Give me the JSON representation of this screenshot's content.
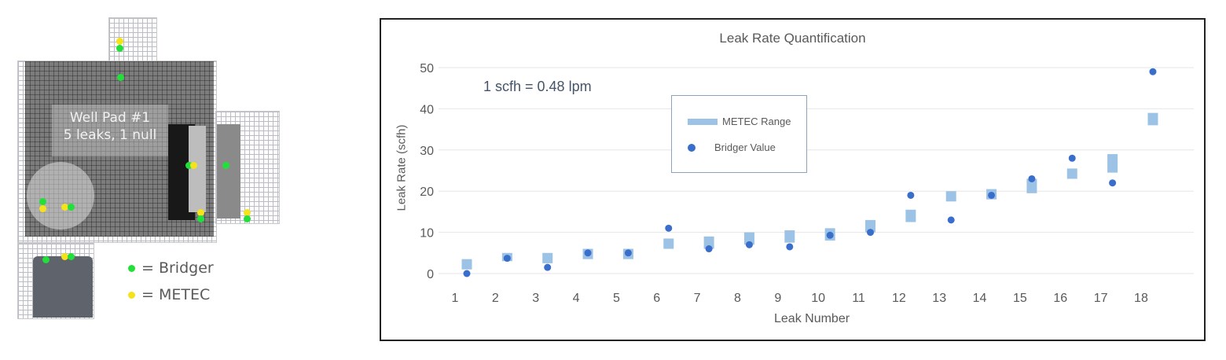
{
  "site_map": {
    "pad_label_line1": "Well Pad #1",
    "pad_label_line2": "5 leaks, 1 null",
    "legend": [
      {
        "label": "= Bridger",
        "color": "#22e03a"
      },
      {
        "label": "= METEC",
        "color": "#f4e21a"
      }
    ]
  },
  "chart_data": {
    "type": "scatter",
    "title": "Leak Rate Quantification",
    "annotation": "1 scfh = 0.48 lpm",
    "xlabel": "Leak Number",
    "ylabel": "Leak Rate (scfh)",
    "ylim": [
      0,
      50
    ],
    "yticks": [
      0,
      10,
      20,
      30,
      40,
      50
    ],
    "grid": true,
    "legend_position": "upper-left-inset",
    "categories": [
      "1",
      "2",
      "3",
      "4",
      "5",
      "6",
      "7",
      "8",
      "9",
      "10",
      "11",
      "12",
      "13",
      "14",
      "15",
      "16",
      "17",
      "18"
    ],
    "series": [
      {
        "name": "METEC Range",
        "marker": "range-bar",
        "color": "#9cc3e5",
        "low": [
          1.0,
          3.0,
          2.5,
          3.5,
          3.5,
          6.0,
          6.0,
          7.0,
          7.5,
          8.0,
          10.0,
          12.5,
          17.5,
          18.0,
          19.5,
          23.0,
          24.5,
          36.0
        ],
        "high": [
          3.5,
          5.0,
          5.0,
          6.0,
          6.0,
          8.5,
          9.0,
          10.0,
          10.5,
          11.0,
          13.0,
          15.5,
          20.0,
          20.5,
          23.0,
          25.5,
          29.0,
          39.0
        ]
      },
      {
        "name": "Bridger Value",
        "marker": "circle",
        "color": "#3a6ecb",
        "values": [
          0,
          3.7,
          1.5,
          5,
          5,
          11,
          6,
          7,
          6.5,
          9.3,
          10,
          19,
          13,
          19,
          23,
          28,
          22,
          49
        ]
      }
    ]
  }
}
